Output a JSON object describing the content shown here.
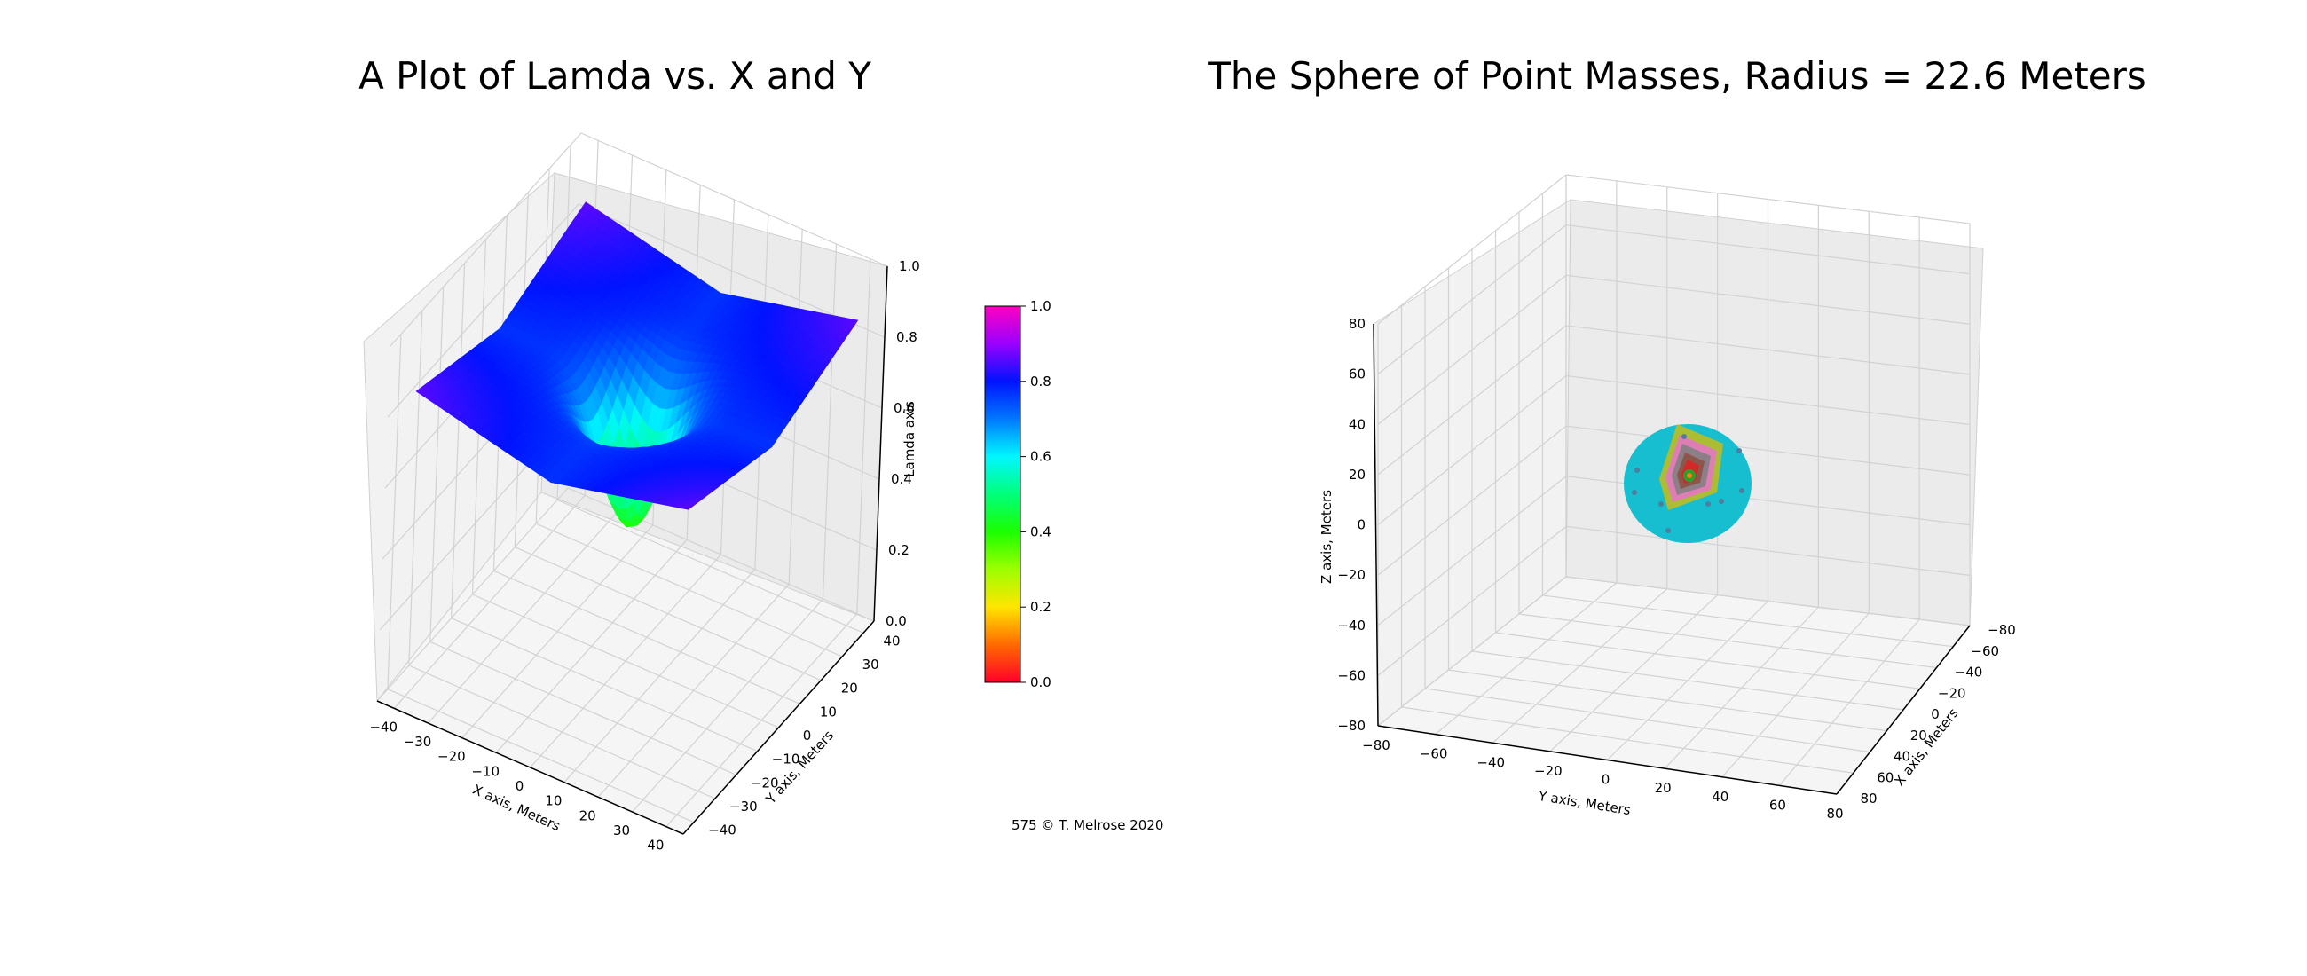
{
  "chart_data": [
    {
      "type": "surface",
      "title": "A Plot of Lamda vs. X and Y",
      "xlabel": "X axis, Meters",
      "ylabel": "Y axis, Meters",
      "zlabel": "Lamda axis",
      "xlim": [
        -45,
        45
      ],
      "ylim": [
        -45,
        45
      ],
      "zlim": [
        0,
        1
      ],
      "x_ticks": [
        -40,
        -30,
        -20,
        -10,
        0,
        10,
        20,
        30,
        40
      ],
      "y_ticks": [
        -40,
        -30,
        -20,
        -10,
        0,
        10,
        20,
        30,
        40
      ],
      "z_ticks": [
        0.0,
        0.2,
        0.4,
        0.6,
        0.8,
        1.0
      ],
      "surface": {
        "description_of_values": "lamda(x,y) over the xy grid",
        "x_range": [
          -40,
          40
        ],
        "y_range": [
          -40,
          40
        ],
        "min_value_at_center": 0.38,
        "edge_value": 0.77,
        "corner_value": 0.86
      },
      "colorbar": {
        "ticks": [
          0.0,
          0.2,
          0.4,
          0.6,
          0.8,
          1.0
        ],
        "range": [
          0,
          1
        ],
        "colormap": "gist_rainbow_r"
      },
      "grid": true
    },
    {
      "type": "scatter3d",
      "title": "The Sphere of Point Masses, Radius = 22.6 Meters",
      "xlabel": "X axis, Meters",
      "ylabel": "Y axis, Meters",
      "zlabel": "Z axis, Meters",
      "xlim": [
        -80,
        80
      ],
      "ylim": [
        -80,
        80
      ],
      "zlim": [
        -80,
        80
      ],
      "x_ticks": [
        -80,
        -60,
        -40,
        -20,
        0,
        20,
        40,
        60,
        80
      ],
      "y_ticks": [
        -80,
        -60,
        -40,
        -20,
        0,
        20,
        40,
        60,
        80
      ],
      "z_ticks": [
        -80,
        -60,
        -40,
        -20,
        0,
        20,
        40,
        60,
        80
      ],
      "sphere": {
        "radius": 22.6,
        "center": [
          0,
          0,
          0
        ],
        "color": "#17becf"
      },
      "grid": true
    }
  ],
  "footer": {
    "text": "575  © T. Melrose 2020"
  }
}
